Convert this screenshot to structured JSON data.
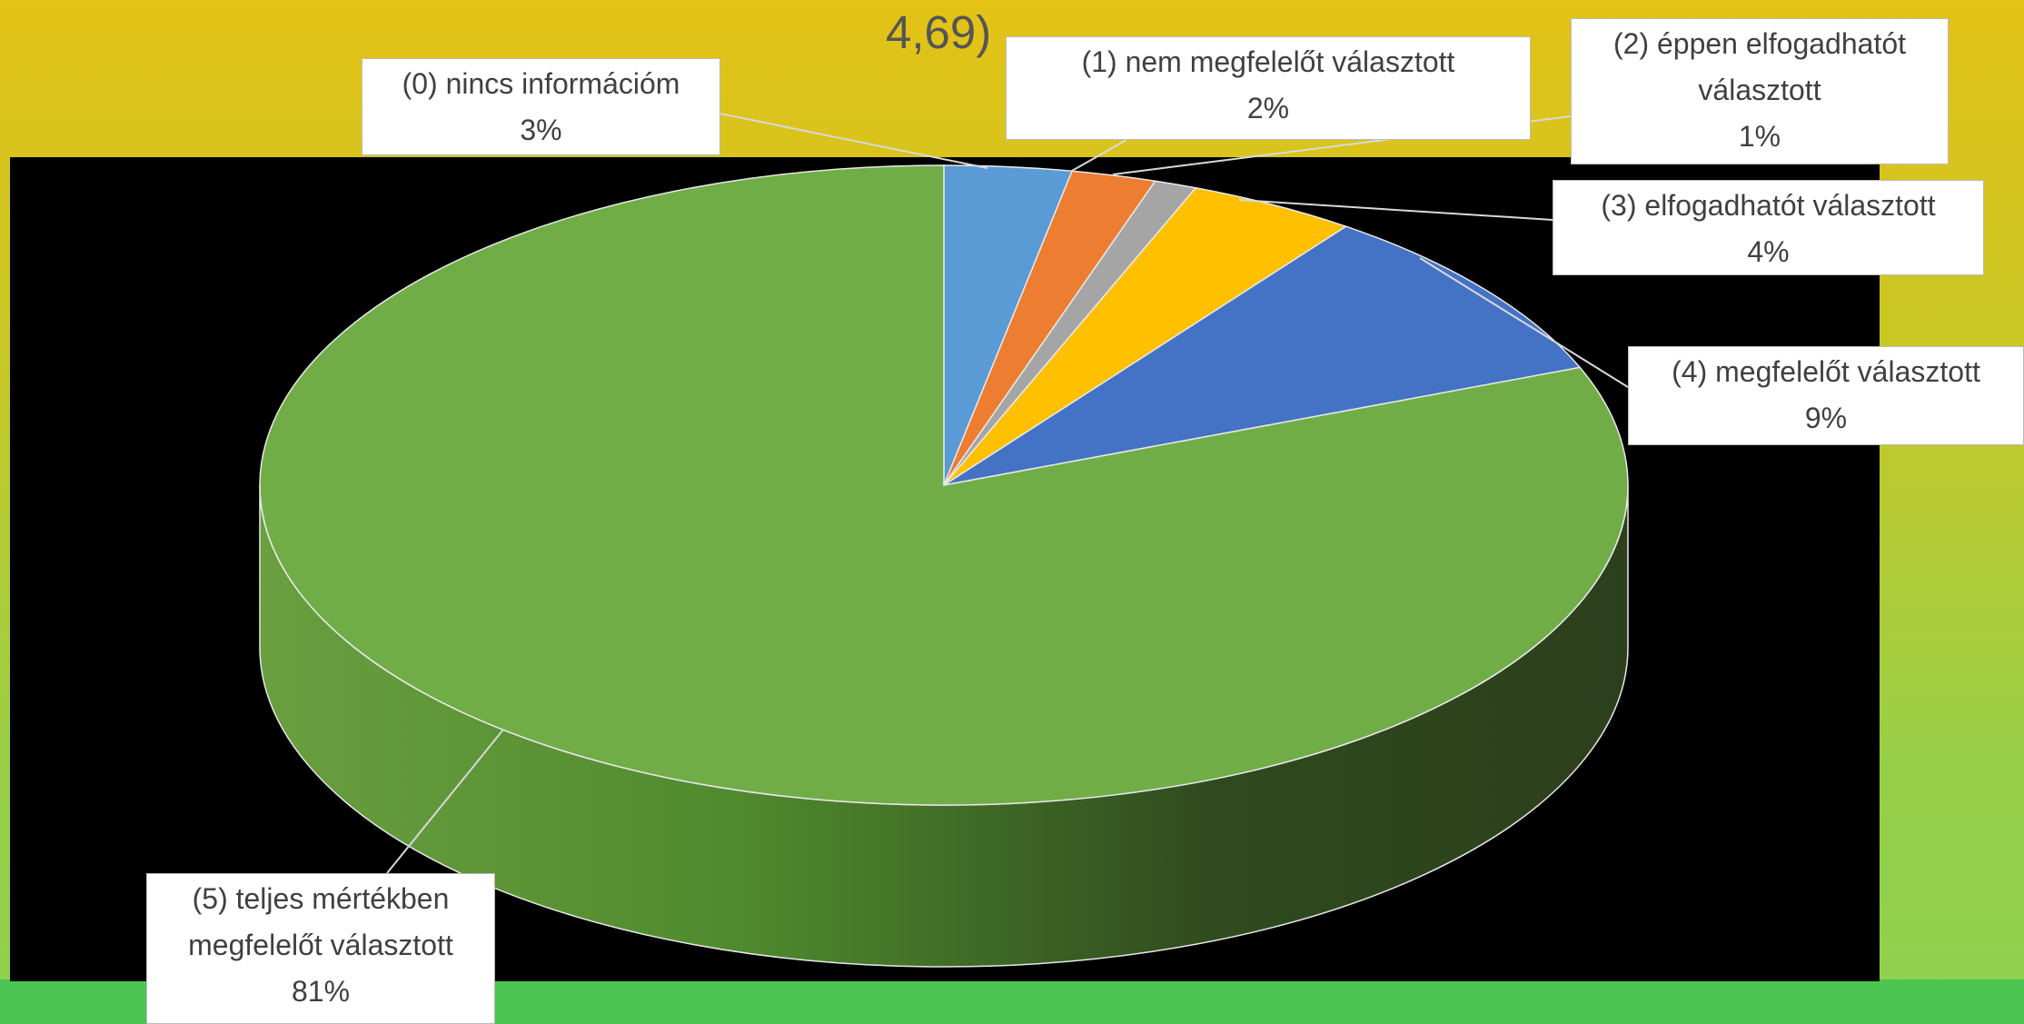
{
  "chart_data": {
    "type": "pie",
    "title": "4,69)",
    "categories": [
      "(0) nincs információm",
      "(1) nem megfelelőt választott",
      "(2) éppen elfogadhatót választott",
      "(3) elfogadhatót választott",
      "(4) megfelelőt választott",
      "(5) teljes mértékben megfelelőt választott"
    ],
    "values": [
      3,
      2,
      1,
      4,
      9,
      81
    ],
    "value_labels": [
      "3%",
      "2%",
      "1%",
      "4%",
      "9%",
      "81%"
    ],
    "colors": [
      "#5b9bd5",
      "#ed7d31",
      "#a5a5a5",
      "#ffc000",
      "#4472c4",
      "#70ad47"
    ]
  }
}
